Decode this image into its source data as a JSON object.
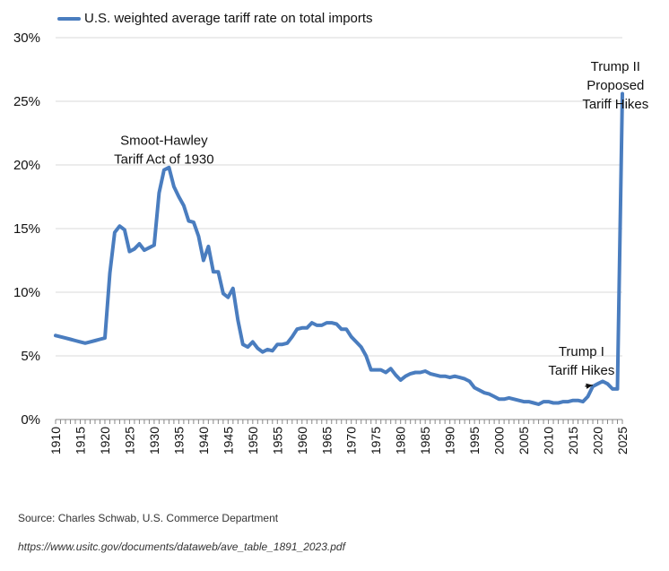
{
  "chart_data": {
    "type": "line",
    "series": [
      {
        "name": "U.S. weighted average tariff rate on total imports",
        "color": "#4a7dbf",
        "x": [
          1910,
          1911,
          1912,
          1913,
          1914,
          1915,
          1916,
          1917,
          1918,
          1919,
          1920,
          1921,
          1922,
          1923,
          1924,
          1925,
          1926,
          1927,
          1928,
          1929,
          1930,
          1931,
          1932,
          1933,
          1934,
          1935,
          1936,
          1937,
          1938,
          1939,
          1940,
          1941,
          1942,
          1943,
          1944,
          1945,
          1946,
          1947,
          1948,
          1949,
          1950,
          1951,
          1952,
          1953,
          1954,
          1955,
          1956,
          1957,
          1958,
          1959,
          1960,
          1961,
          1962,
          1963,
          1964,
          1965,
          1966,
          1967,
          1968,
          1969,
          1970,
          1971,
          1972,
          1973,
          1974,
          1975,
          1976,
          1977,
          1978,
          1979,
          1980,
          1981,
          1982,
          1983,
          1984,
          1985,
          1986,
          1987,
          1988,
          1989,
          1990,
          1991,
          1992,
          1993,
          1994,
          1995,
          1996,
          1997,
          1998,
          1999,
          2000,
          2001,
          2002,
          2003,
          2004,
          2005,
          2006,
          2007,
          2008,
          2009,
          2010,
          2011,
          2012,
          2013,
          2014,
          2015,
          2016,
          2017,
          2018,
          2019,
          2020,
          2021,
          2022,
          2023,
          2024,
          2025
        ],
        "y": [
          6.6,
          6.5,
          6.4,
          6.3,
          6.2,
          6.1,
          6.0,
          6.1,
          6.2,
          6.3,
          6.4,
          11.5,
          14.7,
          15.2,
          14.9,
          13.2,
          13.4,
          13.8,
          13.3,
          13.5,
          13.7,
          17.8,
          19.6,
          19.8,
          18.3,
          17.5,
          16.8,
          15.6,
          15.5,
          14.4,
          12.5,
          13.6,
          11.6,
          11.6,
          9.9,
          9.6,
          10.3,
          7.8,
          5.9,
          5.7,
          6.1,
          5.6,
          5.3,
          5.5,
          5.4,
          5.9,
          5.9,
          6.0,
          6.5,
          7.1,
          7.2,
          7.2,
          7.6,
          7.4,
          7.4,
          7.6,
          7.6,
          7.5,
          7.1,
          7.1,
          6.5,
          6.1,
          5.7,
          5.0,
          3.9,
          3.9,
          3.9,
          3.7,
          4.0,
          3.5,
          3.1,
          3.4,
          3.6,
          3.7,
          3.7,
          3.8,
          3.6,
          3.5,
          3.4,
          3.4,
          3.3,
          3.4,
          3.3,
          3.2,
          3.0,
          2.5,
          2.3,
          2.1,
          2.0,
          1.8,
          1.6,
          1.6,
          1.7,
          1.6,
          1.5,
          1.4,
          1.4,
          1.3,
          1.2,
          1.4,
          1.4,
          1.3,
          1.3,
          1.4,
          1.4,
          1.5,
          1.5,
          1.4,
          1.8,
          2.6,
          2.8,
          3.0,
          2.8,
          2.4,
          2.4,
          25.6
        ]
      }
    ],
    "ylim": [
      0,
      30
    ],
    "xlim": [
      1910,
      2025
    ],
    "yticks": [
      "0%",
      "5%",
      "10%",
      "15%",
      "20%",
      "25%",
      "30%"
    ],
    "ytick_values": [
      0,
      5,
      10,
      15,
      20,
      25,
      30
    ],
    "xticks": [
      "1910",
      "1915",
      "1920",
      "1925",
      "1930",
      "1935",
      "1940",
      "1945",
      "1950",
      "1955",
      "1960",
      "1965",
      "1970",
      "1975",
      "1980",
      "1985",
      "1990",
      "1995",
      "2000",
      "2005",
      "2010",
      "2015",
      "2020",
      "2025"
    ],
    "xtick_values": [
      1910,
      1915,
      1920,
      1925,
      1930,
      1935,
      1940,
      1945,
      1950,
      1955,
      1960,
      1965,
      1970,
      1975,
      1980,
      1985,
      1990,
      1995,
      2000,
      2005,
      2010,
      2015,
      2020,
      2025
    ],
    "grid": "horizontal",
    "legend_position": "top-left",
    "annotations": [
      {
        "lines": [
          "Smoot-Hawley",
          "Tariff Act of 1930"
        ],
        "x": 1932,
        "y": 21.6
      },
      {
        "lines": [
          "Trump I",
          "Tariff Hikes"
        ],
        "x": 2016.7,
        "y": 5.0,
        "arrow_to": [
          2019,
          2.7
        ]
      },
      {
        "lines": [
          "Trump II",
          "Proposed",
          "Tariff Hikes"
        ],
        "x": 2023.6,
        "y": 27.4
      }
    ]
  },
  "legend": {
    "label": "U.S. weighted average tariff rate on total imports",
    "color": "#4a7dbf"
  },
  "footer": {
    "source": "Source: Charles Schwab, U.S. Commerce Department",
    "url": "https://www.usitc.gov/documents/dataweb/ave_table_1891_2023.pdf"
  }
}
